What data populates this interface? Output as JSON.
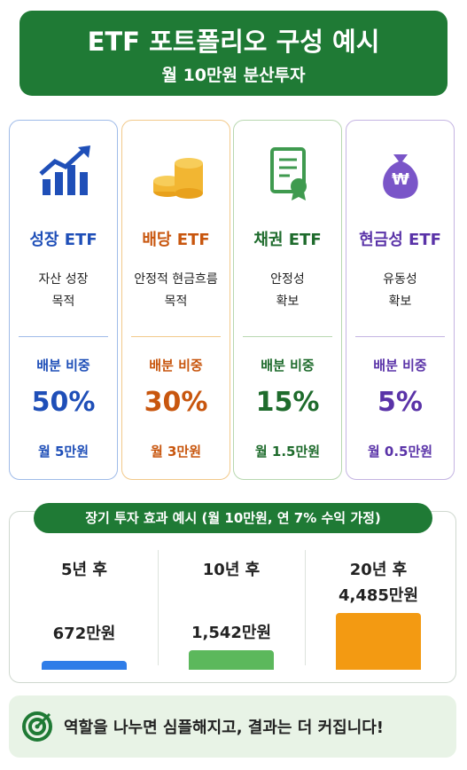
{
  "header": {
    "title": "ETF 포트폴리오 구성 예시",
    "subtitle": "월 10만원 분산투자"
  },
  "cards": [
    {
      "name": "성장 ETF",
      "desc": [
        "자산 성장",
        "목적"
      ],
      "weight_label": "배분 비중",
      "weight": "50%",
      "monthly": "월 5만원",
      "color": "#1f4fb8"
    },
    {
      "name": "배당 ETF",
      "desc": [
        "안정적 현금흐름",
        "목적"
      ],
      "weight_label": "배분 비중",
      "weight": "30%",
      "monthly": "월 3만원",
      "color": "#c8560e"
    },
    {
      "name": "채권 ETF",
      "desc": [
        "안정성",
        "확보"
      ],
      "weight_label": "배분 비중",
      "weight": "15%",
      "monthly": "월 1.5만원",
      "color": "#1e6b2c"
    },
    {
      "name": "현금성 ETF",
      "desc": [
        "유동성",
        "확보"
      ],
      "weight_label": "배분 비중",
      "weight": "5%",
      "monthly": "월 0.5만원",
      "color": "#5a33a8"
    }
  ],
  "results": {
    "title": "장기 투자 효과 예시 (월 10만원, 연 7% 수익 가정)",
    "items": [
      {
        "period": "5년 후",
        "amount": {
          "value": 672,
          "label": "672만원"
        },
        "color": "#2f7de8"
      },
      {
        "period": "10년 후",
        "amount": {
          "value": 1542,
          "label": "1,542만원"
        },
        "color": "#5cb85c"
      },
      {
        "period": "20년 후",
        "amount": {
          "value": 4485,
          "label": "4,485만원"
        },
        "color": "#f39a12"
      }
    ]
  },
  "footer": {
    "text": "역할을 나누면 심플해지고, 결과는 더 커집니다!"
  }
}
